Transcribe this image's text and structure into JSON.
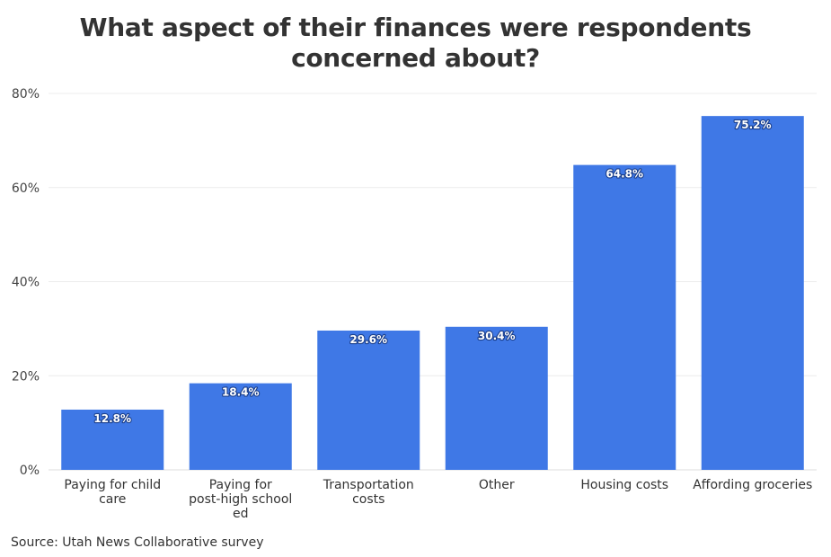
{
  "chart_data": {
    "type": "bar",
    "title": "What aspect of their finances were respondents concerned about?",
    "categories": [
      [
        "Paying for child",
        "care"
      ],
      [
        "Paying for",
        "post-high school",
        "ed"
      ],
      [
        "Transportation",
        "costs"
      ],
      [
        "Other"
      ],
      [
        "Housing costs"
      ],
      [
        "Affording groceries"
      ]
    ],
    "values": [
      12.8,
      18.4,
      29.6,
      30.4,
      64.8,
      75.2
    ],
    "data_labels": [
      "12.8%",
      "18.4%",
      "29.6%",
      "30.4%",
      "64.8%",
      "75.2%"
    ],
    "yticks": [
      0,
      20,
      40,
      60,
      80
    ],
    "ytick_labels": [
      "0%",
      "20%",
      "40%",
      "60%",
      "80%"
    ],
    "ylim": [
      0,
      80
    ],
    "xlabel": "",
    "ylabel": "",
    "grid": true,
    "legend": "none",
    "bar_color": "#3f78e6",
    "source": "Source: Utah News Collaborative survey"
  }
}
